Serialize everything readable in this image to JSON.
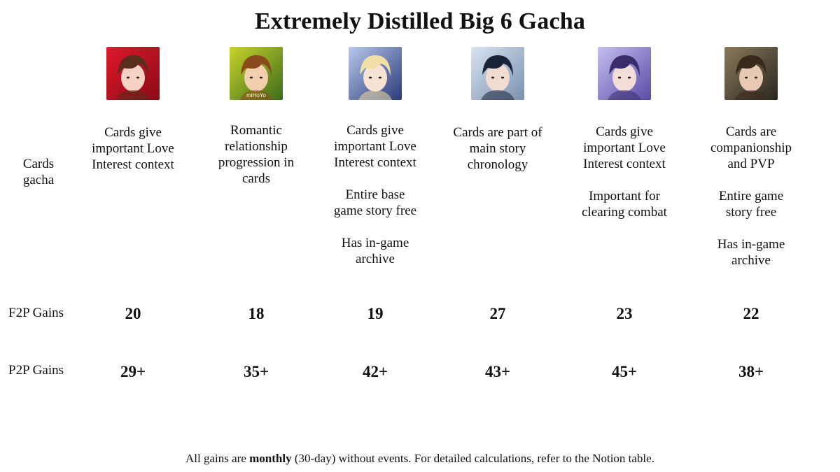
{
  "title": "Extremely Distilled Big 6 Gacha",
  "row_labels": {
    "cards": [
      "Cards",
      "gacha"
    ],
    "f2p": "F2P Gains",
    "p2p": "P2P Gains"
  },
  "columns": [
    {
      "avatar": "character-portrait-red",
      "colors": {
        "bg1": "#e0182c",
        "bg2": "#8a0a16",
        "hair": "#5a2e1c",
        "skin": "#f6d2c4"
      },
      "desc": [
        [
          "Cards give",
          "important Love",
          "Interest context"
        ]
      ],
      "f2p": "20",
      "p2p": "29+"
    },
    {
      "avatar": "character-portrait-green",
      "colors": {
        "bg1": "#c9d42a",
        "bg2": "#3b6b1c",
        "hair": "#8a4a1c",
        "skin": "#f2cfae"
      },
      "watermark": "miHoYo",
      "desc": [
        [
          "Romantic",
          "relationship",
          "progression in",
          "cards"
        ]
      ],
      "f2p": "18",
      "p2p": "35+"
    },
    {
      "avatar": "character-portrait-blue-blond",
      "colors": {
        "bg1": "#b8c8ec",
        "bg2": "#2a3a78",
        "hair": "#f0e0a8",
        "skin": "#f7e2d4"
      },
      "desc": [
        [
          "Cards give",
          "important Love",
          "Interest context"
        ],
        [
          "Entire base",
          "game story free"
        ],
        [
          "Has in-game",
          "archive"
        ]
      ],
      "f2p": "19",
      "p2p": "42+"
    },
    {
      "avatar": "character-portrait-dark-hair",
      "colors": {
        "bg1": "#d8e4f0",
        "bg2": "#7a90b0",
        "hair": "#1a2238",
        "skin": "#f2dcd2"
      },
      "desc": [
        [
          "Cards are part of",
          "main story",
          "chronology"
        ]
      ],
      "f2p": "27",
      "p2p": "43+"
    },
    {
      "avatar": "character-portrait-purple",
      "colors": {
        "bg1": "#c4c0ee",
        "bg2": "#5a4aa8",
        "hair": "#3a2c6a",
        "skin": "#f4dcd8"
      },
      "desc": [
        [
          "Cards give",
          "important Love",
          "Interest context"
        ],
        [
          "Important for",
          "clearing combat"
        ]
      ],
      "f2p": "23",
      "p2p": "45+"
    },
    {
      "avatar": "character-portrait-dark-suit",
      "colors": {
        "bg1": "#8a7a5a",
        "bg2": "#2a2620",
        "hair": "#3a2a1e",
        "skin": "#e8cab4"
      },
      "desc": [
        [
          "Cards are",
          "companionship",
          "and PVP"
        ],
        [
          "Entire game",
          "story free"
        ],
        [
          "Has in-game",
          "archive"
        ]
      ],
      "f2p": "22",
      "p2p": "38+"
    }
  ],
  "footnote": {
    "before": "All gains are ",
    "bold": "monthly",
    "after": " (30-day) without events. For detailed calculations, refer to the Notion table."
  }
}
